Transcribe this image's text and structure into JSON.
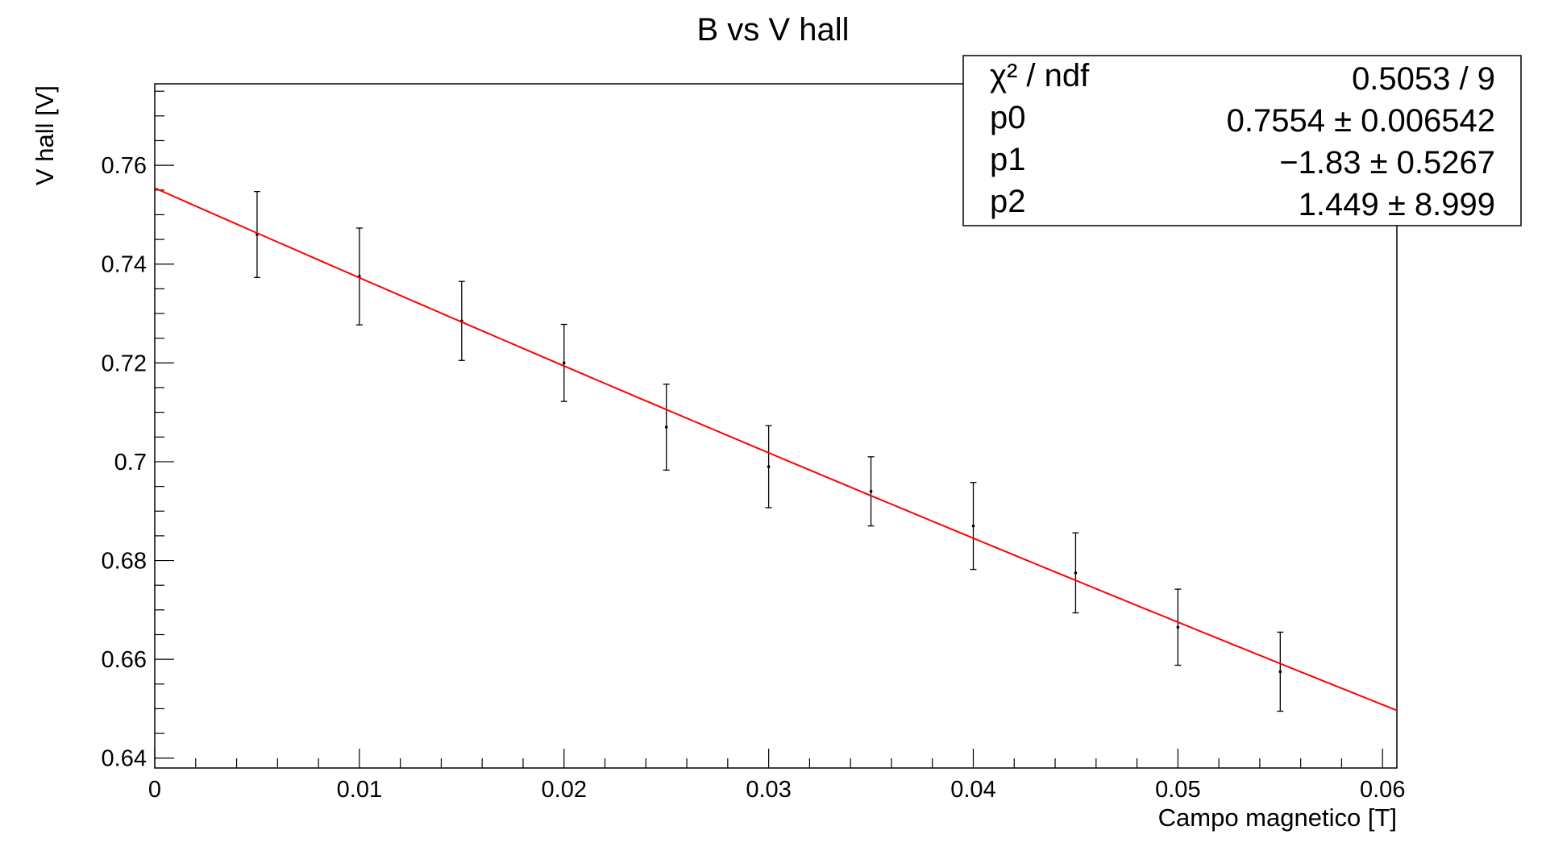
{
  "chart_data": {
    "type": "scatter",
    "title": "B vs V hall",
    "xlabel": "Campo magnetico [T]",
    "ylabel": "V hall [V]",
    "xlim": [
      0,
      0.0607
    ],
    "ylim": [
      0.638,
      0.7765
    ],
    "x_ticks": [
      0,
      0.01,
      0.02,
      0.03,
      0.04,
      0.05,
      0.06
    ],
    "x_tick_labels": [
      "0",
      "0.01",
      "0.02",
      "0.03",
      "0.04",
      "0.05",
      "0.06"
    ],
    "y_ticks": [
      0.64,
      0.66,
      0.68,
      0.7,
      0.72,
      0.74,
      0.76
    ],
    "y_tick_labels": [
      "0.64",
      "0.66",
      "0.68",
      "0.7",
      "0.72",
      "0.74",
      "0.76"
    ],
    "grid": false,
    "series": [
      {
        "x": [
          0.005,
          0.01,
          0.015,
          0.02,
          0.025,
          0.03,
          0.035,
          0.04,
          0.045,
          0.05,
          0.055
        ],
        "y": [
          0.746,
          0.7375,
          0.7285,
          0.72,
          0.707,
          0.699,
          0.694,
          0.687,
          0.6775,
          0.6665,
          0.6575
        ],
        "y_err": [
          0.0087,
          0.0098,
          0.008,
          0.0078,
          0.0087,
          0.0083,
          0.007,
          0.0088,
          0.0081,
          0.0077,
          0.008
        ],
        "color": "#000000"
      }
    ],
    "fit": {
      "function": "pol2",
      "x_range": [
        0,
        0.0607
      ],
      "p0": 0.7554,
      "p1": -1.83,
      "p2": 1.449,
      "color": "#ff0000"
    },
    "stats_box": {
      "rows": [
        {
          "label": "χ² / ndf",
          "value": "0.5053 / 9"
        },
        {
          "label": "p0",
          "value": "0.7554 ± 0.006542"
        },
        {
          "label": "p1",
          "value": "−1.83 ± 0.5267"
        },
        {
          "label": "p2",
          "value": "1.449 ± 8.999"
        }
      ],
      "position": "top-right"
    }
  }
}
